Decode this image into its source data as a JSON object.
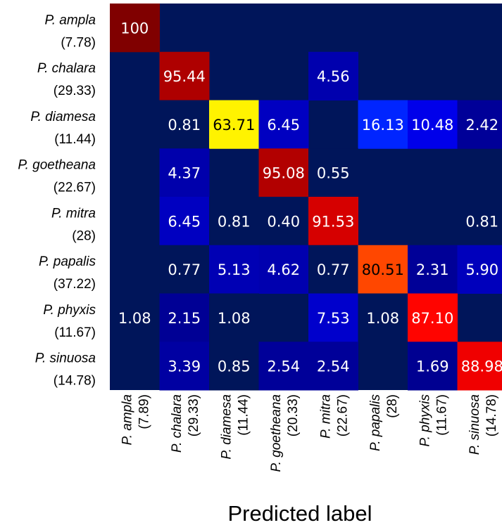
{
  "chart_data": {
    "type": "heatmap",
    "title": "",
    "xlabel": "Predicted label",
    "ylabel": "",
    "rows": [
      {
        "name": "P. ampla",
        "count": "(7.78)"
      },
      {
        "name": "P. chalara",
        "count": "(29.33)"
      },
      {
        "name": "P. diamesa",
        "count": "(11.44)"
      },
      {
        "name": "P. goetheana",
        "count": "(22.67)"
      },
      {
        "name": "P. mitra",
        "count": "(28)"
      },
      {
        "name": "P. papalis",
        "count": "(37.22)"
      },
      {
        "name": "P. phyxis",
        "count": "(11.67)"
      },
      {
        "name": "P. sinuosa",
        "count": "(14.78)"
      }
    ],
    "columns": [
      {
        "name": "P. ampla",
        "count": "(7.89)"
      },
      {
        "name": "P. chalara",
        "count": "(29.33)"
      },
      {
        "name": "P. diamesa",
        "count": "(11.44)"
      },
      {
        "name": "P. goetheana",
        "count": "(20.33)"
      },
      {
        "name": "P. mitra",
        "count": "(22.67)"
      },
      {
        "name": "P. papalis",
        "count": "(28)"
      },
      {
        "name": "P. phyxis",
        "count": "(11.67)"
      },
      {
        "name": "P. sinuosa",
        "count": "(14.78)"
      }
    ],
    "values": [
      [
        "100",
        "",
        "",
        "",
        "",
        "",
        "",
        ""
      ],
      [
        "",
        "95.44",
        "",
        "",
        "4.56",
        "",
        "",
        ""
      ],
      [
        "",
        "0.81",
        "63.71",
        "6.45",
        "",
        "16.13",
        "10.48",
        "2.42"
      ],
      [
        "",
        "4.37",
        "",
        "95.08",
        "0.55",
        "",
        "",
        ""
      ],
      [
        "",
        "6.45",
        "0.81",
        "0.40",
        "91.53",
        "",
        "",
        "0.81"
      ],
      [
        "",
        "0.77",
        "5.13",
        "4.62",
        "0.77",
        "80.51",
        "2.31",
        "5.90"
      ],
      [
        "1.08",
        "2.15",
        "1.08",
        "",
        "7.53",
        "1.08",
        "87.10",
        ""
      ],
      [
        "",
        "3.39",
        "0.85",
        "2.54",
        "2.54",
        "",
        "1.69",
        "88.98"
      ]
    ],
    "value_range": [
      0,
      100
    ],
    "colormap": "jet",
    "colors": {
      "background_cell": "#00155a"
    }
  }
}
